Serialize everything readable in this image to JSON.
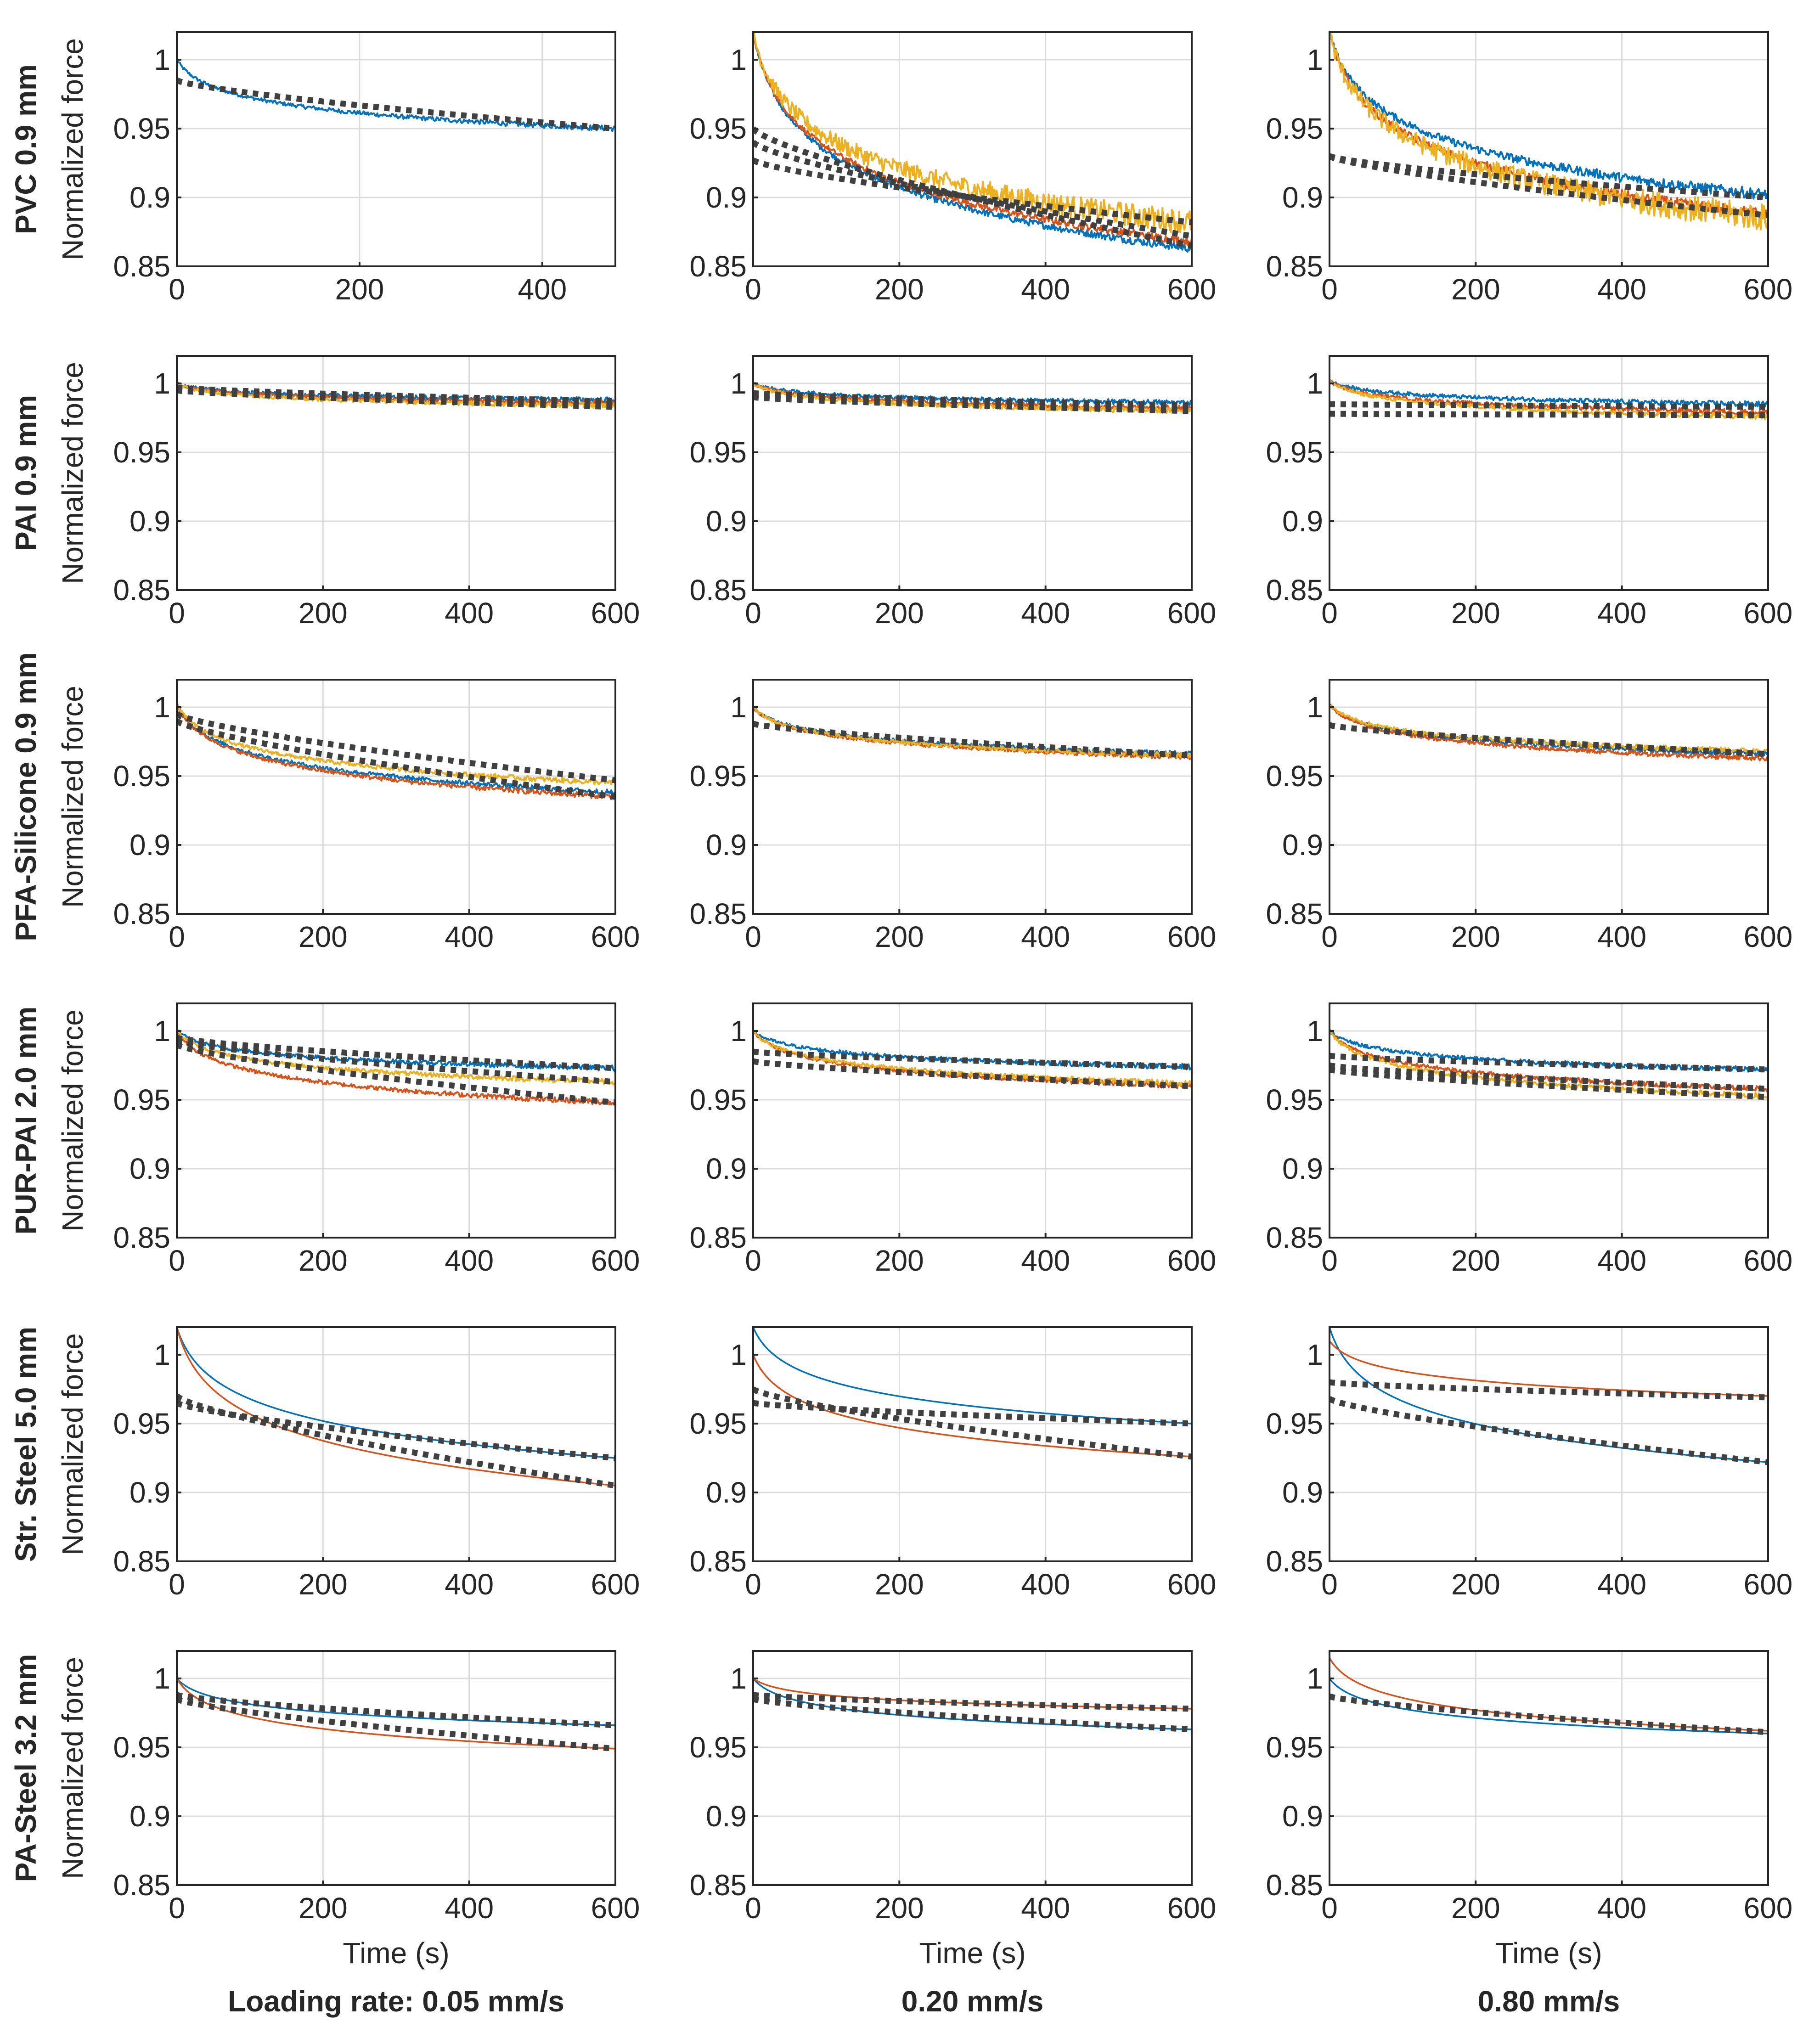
{
  "chart_data": {
    "type": "line",
    "ylabel": "Normalized force",
    "xlabel": "Time (s)",
    "ylim": [
      0.85,
      1.02
    ],
    "yticks": [
      0.85,
      0.9,
      0.95,
      1
    ],
    "ytick_labels": [
      "0.85",
      "0.9",
      "0.95",
      "1"
    ],
    "grid": true,
    "series_colors": {
      "sample_1": "#0072BD",
      "sample_2": "#D95319",
      "sample_3": "#EDB120",
      "fit": "#404040"
    },
    "columns": [
      {
        "label": "Loading rate: 0.05 mm/s"
      },
      {
        "label": "0.20 mm/s"
      },
      {
        "label": "0.80 mm/s"
      }
    ],
    "rows": [
      {
        "label": "PVC 0.9 mm",
        "panels": [
          {
            "xlim": [
              0,
              480
            ],
            "xticks": [
              0,
              200,
              400
            ],
            "series": [
              {
                "name": "sample_1",
                "start": 1.0,
                "end": 0.95,
                "noise": 0.002
              }
            ],
            "fits": [
              {
                "start": 0.985,
                "end": 0.95
              }
            ]
          },
          {
            "xlim": [
              0,
              600
            ],
            "xticks": [
              0,
              200,
              400,
              600
            ],
            "series": [
              {
                "name": "sample_1",
                "start": 1.02,
                "end": 0.863,
                "noise": 0.003
              },
              {
                "name": "sample_2",
                "start": 1.02,
                "end": 0.868,
                "noise": 0.003
              },
              {
                "name": "sample_3",
                "start": 1.02,
                "end": 0.882,
                "noise": 0.009
              }
            ],
            "fits": [
              {
                "start": 0.95,
                "end": 0.865
              },
              {
                "start": 0.94,
                "end": 0.872
              },
              {
                "start": 0.927,
                "end": 0.882
              }
            ]
          },
          {
            "xlim": [
              0,
              600
            ],
            "xticks": [
              0,
              200,
              400,
              600
            ],
            "series": [
              {
                "name": "sample_1",
                "start": 1.02,
                "end": 0.902,
                "noise": 0.004
              },
              {
                "name": "sample_2",
                "start": 1.02,
                "end": 0.888,
                "noise": 0.004
              },
              {
                "name": "sample_3",
                "start": 1.02,
                "end": 0.885,
                "noise": 0.01
              }
            ],
            "fits": [
              {
                "start": 0.93,
                "end": 0.9
              },
              {
                "start": 0.93,
                "end": 0.887
              }
            ]
          }
        ]
      },
      {
        "label": "PAI 0.9 mm",
        "panels": [
          {
            "xlim": [
              0,
              600
            ],
            "xticks": [
              0,
              200,
              400,
              600
            ],
            "series": [
              {
                "name": "sample_1",
                "start": 1.0,
                "end": 0.988,
                "noise": 0.002
              },
              {
                "name": "sample_2",
                "start": 1.0,
                "end": 0.986,
                "noise": 0.002
              },
              {
                "name": "sample_3",
                "start": 1.0,
                "end": 0.984,
                "noise": 0.002
              }
            ],
            "fits": [
              {
                "start": 0.997,
                "end": 0.987
              },
              {
                "start": 0.995,
                "end": 0.983
              }
            ]
          },
          {
            "xlim": [
              0,
              600
            ],
            "xticks": [
              0,
              200,
              400,
              600
            ],
            "series": [
              {
                "name": "sample_1",
                "start": 1.0,
                "end": 0.986,
                "noise": 0.002
              },
              {
                "name": "sample_2",
                "start": 1.0,
                "end": 0.982,
                "noise": 0.002
              },
              {
                "name": "sample_3",
                "start": 1.0,
                "end": 0.98,
                "noise": 0.002
              }
            ],
            "fits": [
              {
                "start": 0.993,
                "end": 0.984
              },
              {
                "start": 0.99,
                "end": 0.98
              }
            ]
          },
          {
            "xlim": [
              0,
              600
            ],
            "xticks": [
              0,
              200,
              400,
              600
            ],
            "series": [
              {
                "name": "sample_1",
                "start": 1.002,
                "end": 0.985,
                "noise": 0.002
              },
              {
                "name": "sample_2",
                "start": 1.002,
                "end": 0.979,
                "noise": 0.002
              },
              {
                "name": "sample_3",
                "start": 1.002,
                "end": 0.976,
                "noise": 0.002
              }
            ],
            "fits": [
              {
                "start": 0.985,
                "end": 0.983
              },
              {
                "start": 0.978,
                "end": 0.977
              }
            ]
          }
        ]
      },
      {
        "label": "PFA-Silicone 0.9 mm",
        "panels": [
          {
            "xlim": [
              0,
              600
            ],
            "xticks": [
              0,
              200,
              400,
              600
            ],
            "series": [
              {
                "name": "sample_1",
                "start": 1.002,
                "end": 0.938,
                "noise": 0.002
              },
              {
                "name": "sample_2",
                "start": 1.002,
                "end": 0.935,
                "noise": 0.002
              },
              {
                "name": "sample_3",
                "start": 1.002,
                "end": 0.945,
                "noise": 0.002
              }
            ],
            "fits": [
              {
                "start": 0.99,
                "end": 0.935
              },
              {
                "start": 0.995,
                "end": 0.947
              }
            ]
          },
          {
            "xlim": [
              0,
              600
            ],
            "xticks": [
              0,
              200,
              400,
              600
            ],
            "series": [
              {
                "name": "sample_1",
                "start": 1.0,
                "end": 0.966,
                "noise": 0.002
              },
              {
                "name": "sample_2",
                "start": 1.0,
                "end": 0.964,
                "noise": 0.002
              },
              {
                "name": "sample_3",
                "start": 1.0,
                "end": 0.965,
                "noise": 0.002
              }
            ],
            "fits": [
              {
                "start": 0.988,
                "end": 0.965
              }
            ]
          },
          {
            "xlim": [
              0,
              600
            ],
            "xticks": [
              0,
              200,
              400,
              600
            ],
            "series": [
              {
                "name": "sample_1",
                "start": 1.002,
                "end": 0.966,
                "noise": 0.002
              },
              {
                "name": "sample_2",
                "start": 1.002,
                "end": 0.963,
                "noise": 0.002
              },
              {
                "name": "sample_3",
                "start": 1.002,
                "end": 0.968,
                "noise": 0.002
              }
            ],
            "fits": [
              {
                "start": 0.987,
                "end": 0.966
              }
            ]
          }
        ]
      },
      {
        "label": "PUR-PAI 2.0 mm",
        "panels": [
          {
            "xlim": [
              0,
              600
            ],
            "xticks": [
              0,
              200,
              400,
              600
            ],
            "series": [
              {
                "name": "sample_1",
                "start": 1.0,
                "end": 0.973,
                "noise": 0.002
              },
              {
                "name": "sample_2",
                "start": 1.0,
                "end": 0.948,
                "noise": 0.002
              },
              {
                "name": "sample_3",
                "start": 1.0,
                "end": 0.963,
                "noise": 0.002
              }
            ],
            "fits": [
              {
                "start": 0.995,
                "end": 0.973
              },
              {
                "start": 0.993,
                "end": 0.963
              },
              {
                "start": 0.99,
                "end": 0.948
              }
            ]
          },
          {
            "xlim": [
              0,
              600
            ],
            "xticks": [
              0,
              200,
              400,
              600
            ],
            "series": [
              {
                "name": "sample_1",
                "start": 1.0,
                "end": 0.974,
                "noise": 0.002
              },
              {
                "name": "sample_2",
                "start": 1.0,
                "end": 0.96,
                "noise": 0.002
              },
              {
                "name": "sample_3",
                "start": 1.0,
                "end": 0.962,
                "noise": 0.002
              }
            ],
            "fits": [
              {
                "start": 0.985,
                "end": 0.974
              },
              {
                "start": 0.978,
                "end": 0.96
              }
            ]
          },
          {
            "xlim": [
              0,
              600
            ],
            "xticks": [
              0,
              200,
              400,
              600
            ],
            "series": [
              {
                "name": "sample_1",
                "start": 1.0,
                "end": 0.972,
                "noise": 0.002
              },
              {
                "name": "sample_2",
                "start": 1.0,
                "end": 0.958,
                "noise": 0.002
              },
              {
                "name": "sample_3",
                "start": 1.0,
                "end": 0.953,
                "noise": 0.002
              }
            ],
            "fits": [
              {
                "start": 0.982,
                "end": 0.972
              },
              {
                "start": 0.975,
                "end": 0.958
              },
              {
                "start": 0.972,
                "end": 0.952
              }
            ]
          }
        ]
      },
      {
        "label": "Str. Steel 5.0 mm",
        "panels": [
          {
            "xlim": [
              0,
              600
            ],
            "xticks": [
              0,
              200,
              400,
              600
            ],
            "series": [
              {
                "name": "sample_1",
                "start": 1.02,
                "end": 0.925,
                "noise": 0
              },
              {
                "name": "sample_2",
                "start": 1.02,
                "end": 0.905,
                "noise": 0
              }
            ],
            "fits": [
              {
                "start": 0.965,
                "end": 0.925
              },
              {
                "start": 0.97,
                "end": 0.905
              }
            ]
          },
          {
            "xlim": [
              0,
              600
            ],
            "xticks": [
              0,
              200,
              400,
              600
            ],
            "series": [
              {
                "name": "sample_1",
                "start": 1.02,
                "end": 0.95,
                "noise": 0
              },
              {
                "name": "sample_2",
                "start": 1.0,
                "end": 0.926,
                "noise": 0
              }
            ],
            "fits": [
              {
                "start": 0.965,
                "end": 0.95
              },
              {
                "start": 0.975,
                "end": 0.926
              }
            ]
          },
          {
            "xlim": [
              0,
              600
            ],
            "xticks": [
              0,
              200,
              400,
              600
            ],
            "series": [
              {
                "name": "sample_1",
                "start": 1.02,
                "end": 0.922,
                "noise": 0
              },
              {
                "name": "sample_2",
                "start": 1.01,
                "end": 0.97,
                "noise": 0
              }
            ],
            "fits": [
              {
                "start": 0.968,
                "end": 0.922
              },
              {
                "start": 0.98,
                "end": 0.969
              }
            ]
          }
        ]
      },
      {
        "label": "PA-Steel 3.2 mm",
        "panels": [
          {
            "xlim": [
              0,
              600
            ],
            "xticks": [
              0,
              200,
              400,
              600
            ],
            "series": [
              {
                "name": "sample_1",
                "start": 1.0,
                "end": 0.966,
                "noise": 0
              },
              {
                "name": "sample_2",
                "start": 1.0,
                "end": 0.949,
                "noise": 0
              }
            ],
            "fits": [
              {
                "start": 0.988,
                "end": 0.966
              },
              {
                "start": 0.985,
                "end": 0.949
              }
            ]
          },
          {
            "xlim": [
              0,
              600
            ],
            "xticks": [
              0,
              200,
              400,
              600
            ],
            "series": [
              {
                "name": "sample_1",
                "start": 1.0,
                "end": 0.963,
                "noise": 0
              },
              {
                "name": "sample_2",
                "start": 1.0,
                "end": 0.978,
                "noise": 0
              }
            ],
            "fits": [
              {
                "start": 0.985,
                "end": 0.963
              },
              {
                "start": 0.988,
                "end": 0.978
              }
            ]
          },
          {
            "xlim": [
              0,
              600
            ],
            "xticks": [
              0,
              200,
              400,
              600
            ],
            "series": [
              {
                "name": "sample_1",
                "start": 1.0,
                "end": 0.96,
                "noise": 0
              },
              {
                "name": "sample_2",
                "start": 1.015,
                "end": 0.962,
                "noise": 0
              }
            ],
            "fits": [
              {
                "start": 0.987,
                "end": 0.961
              }
            ]
          }
        ]
      }
    ]
  }
}
